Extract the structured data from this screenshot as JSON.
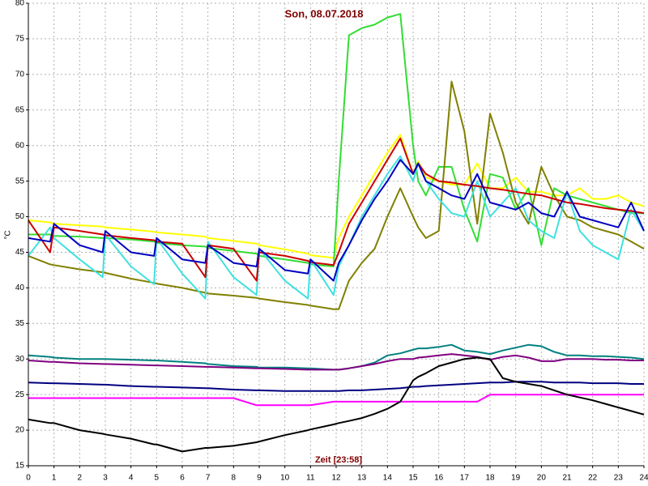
{
  "chart_data": {
    "type": "line",
    "title": "Son, 08.07.2018",
    "y_label": "°C",
    "x_label": "Zeit [23:58]",
    "x": [
      0,
      0.85,
      1,
      2,
      2.9,
      3,
      4,
      4.9,
      5,
      6,
      6.9,
      7,
      8,
      8.9,
      9,
      10,
      10.9,
      11,
      11.9,
      12.1,
      12.5,
      13,
      13.5,
      14,
      14.5,
      15,
      15.2,
      15.5,
      16,
      16.5,
      17,
      17.5,
      18,
      18.5,
      19,
      19.5,
      20,
      20.5,
      21,
      21.5,
      22,
      22.5,
      23,
      23.5,
      24
    ],
    "xlim": [
      0,
      24
    ],
    "xticks": [
      0,
      1,
      2,
      3,
      4,
      5,
      6,
      7,
      8,
      9,
      10,
      11,
      12,
      13,
      14,
      15,
      16,
      17,
      18,
      19,
      20,
      21,
      22,
      23,
      24
    ],
    "ylim": [
      15,
      80
    ],
    "yticks": [
      15,
      20,
      25,
      30,
      35,
      40,
      45,
      50,
      55,
      60,
      65,
      70,
      75,
      80
    ],
    "grid": true,
    "series": [
      {
        "color": "#ffff00",
        "values": [
          49.5,
          49.2,
          49,
          48.8,
          48.6,
          48.5,
          48.2,
          47.9,
          47.8,
          47.5,
          47.2,
          47,
          46.6,
          46.2,
          46,
          45.4,
          44.8,
          44.6,
          44.2,
          47,
          50,
          53,
          56,
          59,
          61.5,
          56,
          57.8,
          55.5,
          55,
          54.5,
          54.5,
          57.5,
          54,
          54,
          55.5,
          53.5,
          53.5,
          53,
          53,
          54,
          52.5,
          52.5,
          53,
          52,
          51.5
        ]
      },
      {
        "color": "#33dd33",
        "values": [
          47.5,
          47.5,
          47.3,
          47.2,
          47,
          47,
          46.8,
          46.5,
          46.3,
          46,
          45.8,
          45.6,
          45.2,
          44.8,
          44.5,
          44,
          43.5,
          43.3,
          43,
          55,
          75.5,
          76.5,
          77,
          78,
          78.5,
          60,
          55,
          53,
          57,
          57,
          51,
          46.5,
          56,
          55.5,
          51,
          54,
          46,
          54,
          53,
          52.5,
          52,
          51.5,
          51,
          50.5,
          50.5
        ]
      },
      {
        "color": "#808000",
        "values": [
          44.5,
          43.3,
          43.2,
          42.6,
          42.2,
          42.1,
          41.3,
          40.7,
          40.6,
          40,
          39.3,
          39.2,
          38.9,
          38.6,
          38.5,
          38,
          37.6,
          37.5,
          37,
          37,
          41,
          43.5,
          45.5,
          50,
          54,
          50,
          48.5,
          47,
          48,
          69,
          62,
          49,
          64.5,
          59,
          52,
          49,
          57,
          53,
          50,
          49.5,
          48.5,
          48,
          47.5,
          46.5,
          45.5
        ]
      },
      {
        "color": "#40e0e0",
        "values": [
          44.5,
          48.5,
          47,
          44,
          41.5,
          47.5,
          43,
          40.5,
          47,
          42,
          38.5,
          46.5,
          41.5,
          39,
          45.5,
          41,
          38.5,
          44,
          39,
          43,
          46,
          50,
          53,
          56,
          58.5,
          55,
          57.5,
          55,
          52.5,
          50.5,
          50,
          55,
          50,
          52,
          54,
          49.5,
          48,
          47,
          53.5,
          48,
          46,
          45,
          44,
          51,
          48
        ]
      },
      {
        "color": "#cc0000",
        "values": [
          49.5,
          45,
          48.5,
          48,
          47.5,
          47.4,
          47,
          46.7,
          46.5,
          46.2,
          41.5,
          46,
          45.5,
          41,
          45,
          44.5,
          43.8,
          43.6,
          43.2,
          45,
          49,
          52,
          55,
          58,
          61,
          56,
          57.5,
          56,
          55,
          54.8,
          54.5,
          54.3,
          54,
          53.8,
          53.5,
          53.2,
          53,
          52.5,
          52,
          51.8,
          51.5,
          51.2,
          51,
          50.8,
          50.5
        ]
      },
      {
        "color": "#0000c0",
        "values": [
          47,
          46.5,
          49,
          46,
          45,
          48,
          45,
          44.5,
          47,
          44,
          43.5,
          46,
          43.5,
          43,
          45.5,
          42.5,
          42,
          44,
          41,
          43.5,
          46,
          49.5,
          52.5,
          55,
          58,
          56,
          57.5,
          55,
          54,
          53,
          52.5,
          56,
          52,
          51.5,
          51,
          52,
          50.5,
          50,
          53.5,
          50,
          49.5,
          49,
          48.5,
          52,
          48
        ]
      },
      {
        "color": "#008080",
        "values": [
          30.5,
          30.3,
          30.2,
          30,
          30,
          30,
          29.9,
          29.8,
          29.8,
          29.6,
          29.4,
          29.3,
          29,
          28.9,
          28.8,
          28.8,
          28.7,
          28.7,
          28.5,
          28.5,
          28.7,
          29,
          29.5,
          30.5,
          30.8,
          31.3,
          31.5,
          31.5,
          31.7,
          32,
          31.2,
          31,
          30.7,
          31.2,
          31.6,
          32,
          31.8,
          31,
          30.5,
          30.5,
          30.4,
          30.4,
          30.3,
          30.2,
          30
        ]
      },
      {
        "color": "#800080",
        "values": [
          29.8,
          29.6,
          29.6,
          29.4,
          29.3,
          29.3,
          29.2,
          29.1,
          29.1,
          29,
          28.9,
          28.9,
          28.8,
          28.7,
          28.7,
          28.6,
          28.5,
          28.5,
          28.5,
          28.5,
          28.7,
          29,
          29.3,
          29.7,
          30,
          30,
          30.2,
          30.3,
          30.5,
          30.7,
          30.5,
          30.3,
          29.9,
          30.3,
          30.5,
          30.2,
          29.7,
          29.7,
          30,
          30,
          30,
          29.9,
          29.9,
          29.8,
          29.8
        ]
      },
      {
        "color": "#000080",
        "values": [
          26.7,
          26.6,
          26.6,
          26.5,
          26.4,
          26.4,
          26.2,
          26.1,
          26.1,
          26,
          25.9,
          25.9,
          25.7,
          25.6,
          25.6,
          25.5,
          25.5,
          25.5,
          25.5,
          25.5,
          25.6,
          25.6,
          25.7,
          25.8,
          25.9,
          26.1,
          26.1,
          26.2,
          26.3,
          26.4,
          26.5,
          26.6,
          26.7,
          26.7,
          26.8,
          26.8,
          26.8,
          26.7,
          26.7,
          26.7,
          26.6,
          26.6,
          26.6,
          26.5,
          26.5
        ]
      },
      {
        "color": "#ff00ff",
        "values": [
          24.5,
          24.5,
          24.5,
          24.5,
          24.5,
          24.5,
          24.5,
          24.5,
          24.5,
          24.5,
          24.5,
          24.5,
          24.5,
          23.5,
          23.5,
          23.5,
          23.5,
          23.5,
          24,
          24,
          24,
          24,
          24,
          24,
          24,
          24,
          24,
          24,
          24,
          24,
          24,
          24,
          25,
          25,
          25,
          25,
          25,
          25,
          25,
          25,
          25,
          25,
          25,
          25,
          25
        ]
      },
      {
        "color": "#000000",
        "values": [
          21.5,
          21,
          21,
          20,
          19.5,
          19.4,
          18.8,
          18,
          18,
          17,
          17.5,
          17.5,
          17.8,
          18.3,
          18.4,
          19.3,
          20,
          20.1,
          20.8,
          21,
          21.3,
          21.7,
          22.3,
          23,
          24,
          27,
          27.5,
          28,
          29,
          29.5,
          30,
          30.2,
          30,
          27.3,
          26.8,
          26.5,
          26.2,
          25.6,
          25,
          24.6,
          24.2,
          23.7,
          23.2,
          22.7,
          22.2
        ]
      }
    ]
  }
}
